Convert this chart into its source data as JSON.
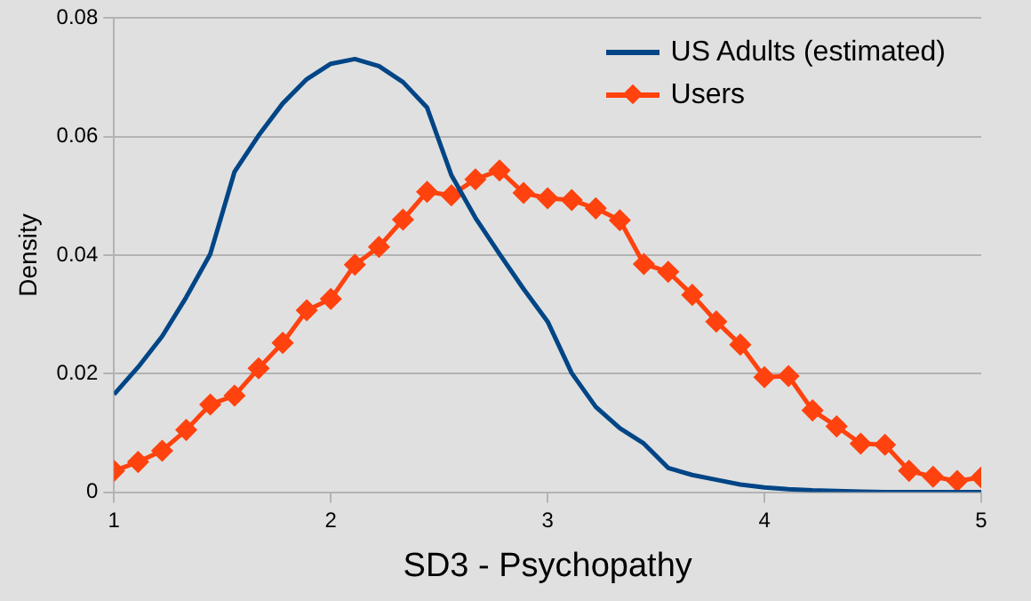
{
  "chart_data": {
    "type": "line",
    "xlabel": "SD3 - Psychopathy",
    "ylabel": "Density",
    "x": [
      1,
      1.111,
      1.222,
      1.333,
      1.444,
      1.556,
      1.667,
      1.778,
      1.889,
      2,
      2.111,
      2.222,
      2.333,
      2.444,
      2.556,
      2.667,
      2.778,
      2.889,
      3,
      3.111,
      3.222,
      3.333,
      3.444,
      3.556,
      3.667,
      3.778,
      3.889,
      4,
      4.111,
      4.222,
      4.333,
      4.444,
      4.556,
      4.667,
      4.778,
      4.889,
      5
    ],
    "series": [
      {
        "name": "US Adults (estimated)",
        "color": "#004586",
        "marker": "none",
        "values": [
          0.0165,
          0.0211,
          0.0263,
          0.0329,
          0.0402,
          0.0541,
          0.0602,
          0.0656,
          0.0697,
          0.0723,
          0.0731,
          0.0719,
          0.0692,
          0.0649,
          0.0535,
          0.0463,
          0.0402,
          0.0343,
          0.0288,
          0.0201,
          0.0144,
          0.0108,
          0.0082,
          0.0041,
          0.0029,
          0.0021,
          0.0013,
          0.0008,
          0.0005,
          0.0003,
          0.0002,
          0.0001,
          0,
          0,
          0,
          0,
          0
        ]
      },
      {
        "name": "Users",
        "color": "#ff420e",
        "marker": "diamond",
        "values": [
          0.0036,
          0.0051,
          0.007,
          0.0105,
          0.0148,
          0.0163,
          0.0209,
          0.0252,
          0.0307,
          0.0326,
          0.0384,
          0.0414,
          0.046,
          0.0507,
          0.0501,
          0.0528,
          0.0543,
          0.0505,
          0.0496,
          0.0493,
          0.0479,
          0.0459,
          0.0385,
          0.0372,
          0.0333,
          0.0288,
          0.0249,
          0.0194,
          0.0196,
          0.0138,
          0.0111,
          0.0082,
          0.008,
          0.0036,
          0.0026,
          0.0019,
          0.0025
        ]
      }
    ],
    "xlim": [
      1,
      5
    ],
    "xticks": [
      1,
      2,
      3,
      4,
      5
    ],
    "ylim": [
      0,
      0.08
    ],
    "yticks": [
      0,
      0.02,
      0.04,
      0.06,
      0.08
    ],
    "grid": "y",
    "legend": "top right",
    "line_style": "solid"
  }
}
